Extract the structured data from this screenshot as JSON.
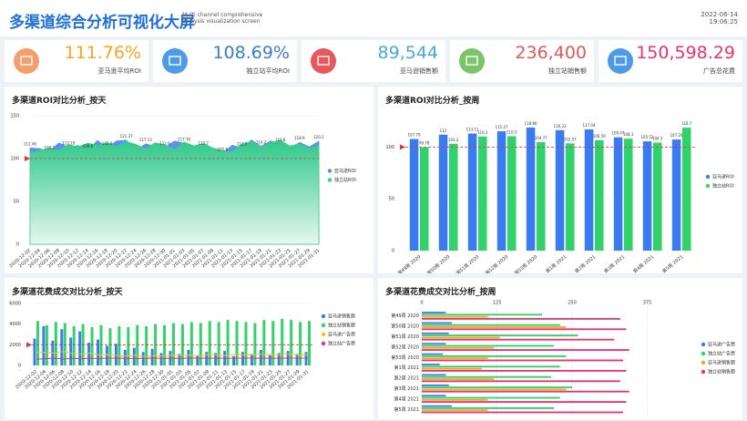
{
  "header": {
    "title": "多渠道综合分析可视化大屏",
    "subtitle": "Multi channel comprehensive analysis visualization screen",
    "date": "2022-06-14",
    "time": "19:06:25"
  },
  "kpis": [
    {
      "value": "111.76%",
      "label": "亚马逊平均ROI"
    },
    {
      "value": "108.69%",
      "label": "独立站平均ROI"
    },
    {
      "value": "89,544",
      "label": "亚马逊销售额"
    },
    {
      "value": "236,400",
      "label": "独立站销售额"
    },
    {
      "value": "150,598.29",
      "label": "广告总花费"
    }
  ],
  "chart_data": [
    {
      "type": "line",
      "area": true,
      "title": "多渠道ROI对比分析_按天",
      "categories": [
        "2020-12-02",
        "2020-12-04",
        "2020-12-06",
        "2020-12-08",
        "2020-12-10",
        "2020-12-12",
        "2020-12-14",
        "2020-12-16",
        "2020-12-18",
        "2020-12-20",
        "2020-12-22",
        "2020-12-24",
        "2020-12-26",
        "2020-12-28",
        "2020-12-30",
        "2021-01-01",
        "2021-01-03",
        "2021-01-05",
        "2021-01-07",
        "2021-01-09",
        "2021-01-11",
        "2021-01-13",
        "2021-01-15",
        "2021-01-17",
        "2021-01-19",
        "2021-01-21",
        "2021-01-23",
        "2021-01-25",
        "2021-01-27",
        "2021-01-29",
        "2021-01-31"
      ],
      "series": [
        {
          "name": "亚马逊ROI",
          "color": "#5b8ff9",
          "values": [
            112.46,
            111.51,
            108.2,
            118.23,
            113.19,
            115.28,
            109.6,
            121.05,
            112.8,
            120.61,
            121.37,
            109.81,
            117.13,
            114.5,
            112.9,
            120.4,
            117.76,
            108.74,
            113.2,
            110.9,
            105.8,
            115.67,
            112.3,
            121.66,
            114.2,
            120.51,
            116.8,
            111.4,
            118.9,
            113.6,
            120.2
          ]
        },
        {
          "name": "独立站ROI",
          "color": "#3ed07a",
          "values": [
            106.5,
            109.45,
            112.1,
            110.3,
            116.2,
            113.7,
            117.9,
            115.4,
            118.6,
            114.2,
            119.8,
            116.5,
            111.3,
            118.4,
            115.9,
            110.6,
            119.2,
            114.8,
            117.5,
            112.4,
            109.1,
            108.3,
            116.9,
            119.7,
            113.5,
            118.2,
            121.4,
            114.6,
            117.3,
            111.9,
            115.5
          ]
        }
      ],
      "ylim": [
        0,
        150
      ],
      "yticks": [
        0,
        50,
        100,
        150
      ],
      "markline": 100,
      "markline_color": "#e0333a"
    },
    {
      "type": "bar",
      "title": "多渠道ROI对比分析_按周",
      "categories": [
        "第49周 2020",
        "第50周 2020",
        "第51周 2020",
        "第52周 2020",
        "第53周 2020",
        "第1周 2021",
        "第2周 2021",
        "第3周 2021",
        "第4周 2021",
        "第5周 2021"
      ],
      "series": [
        {
          "name": "亚马逊ROI",
          "color": "#3b7bf0",
          "values": [
            107.79,
            112,
            113.11,
            115.27,
            118.86,
            116.33,
            117.04,
            109.47,
            105.52,
            107.29
          ]
        },
        {
          "name": "独立站ROI",
          "color": "#2fd36a",
          "values": [
            99.78,
            103.2,
            110.2,
            110.5,
            104.77,
            103.57,
            106.59,
            108.1,
            104.3,
            118.7
          ]
        }
      ],
      "ylim": [
        0,
        125
      ],
      "yticks": [
        0,
        50,
        100
      ],
      "markline": 100,
      "markline_color": "#e0333a"
    },
    {
      "type": "bar",
      "title": "多渠道花费成交对比分析_按天",
      "categories": [
        "2020-12-02",
        "2020-12-04",
        "2020-12-06",
        "2020-12-08",
        "2020-12-10",
        "2020-12-12",
        "2020-12-14",
        "2020-12-16",
        "2020-12-18",
        "2020-12-20",
        "2020-12-22",
        "2020-12-24",
        "2020-12-26",
        "2020-12-28",
        "2020-12-30",
        "2021-01-01",
        "2021-01-03",
        "2021-01-05",
        "2021-01-07",
        "2021-01-09",
        "2021-01-11",
        "2021-01-13",
        "2021-01-15",
        "2021-01-17",
        "2021-01-19",
        "2021-01-21",
        "2021-01-23",
        "2021-01-25",
        "2021-01-27",
        "2021-01-29",
        "2021-01-31"
      ],
      "series": [
        {
          "name": "亚马逊销售额",
          "color": "#3b7bf0",
          "values": [
            2600,
            3800,
            2400,
            3500,
            2700,
            3300,
            2200,
            2500,
            1900,
            2100,
            1500,
            1700,
            1300,
            1600,
            1200,
            1400,
            1100,
            1500,
            1000,
            1300,
            1200,
            1400,
            900,
            1300,
            1100,
            1500,
            1000,
            1200,
            1400,
            1100,
            1300
          ]
        },
        {
          "name": "独立站销售额",
          "color": "#2fd36a",
          "values": [
            4300,
            3900,
            4200,
            4100,
            3800,
            4000,
            3700,
            3900,
            3600,
            3800,
            3700,
            3900,
            3800,
            4000,
            3900,
            4100,
            4000,
            4200,
            4100,
            4300,
            4200,
            4400,
            4300,
            4200,
            4100,
            4400,
            4300,
            4500,
            4400,
            4200,
            4300
          ]
        },
        {
          "name": "亚马逊广告费",
          "color": "#f5c518",
          "type": "line",
          "values": [
            1300,
            1250,
            1200,
            1350,
            1150,
            1100,
            1200,
            1000,
            1050,
            950,
            900,
            1000,
            850,
            950,
            900,
            1000,
            950,
            1000,
            900,
            1050,
            1000,
            950,
            1100,
            1000,
            1050,
            1100,
            1000,
            1050,
            1100,
            1000,
            1050
          ]
        },
        {
          "name": "独立站广告费",
          "color": "#e8336d",
          "type": "line",
          "values": [
            600,
            650,
            700,
            620,
            680,
            640,
            700,
            660,
            720,
            680,
            700,
            650,
            690,
            710,
            670,
            700,
            680,
            720,
            690,
            700,
            710,
            680,
            700,
            720,
            690,
            710,
            700,
            690,
            720,
            700,
            710
          ]
        }
      ],
      "ylim": [
        0,
        6000
      ],
      "yticks": [
        0,
        2000,
        4000,
        6000
      ],
      "markline": 2000,
      "markline_color": "#e0333a"
    },
    {
      "type": "hbar",
      "title": "多渠道花费成交对比分析_按周",
      "categories": [
        "第49周 2020",
        "第50周 2020",
        "第51周 2020",
        "第52周 2020",
        "第53周 2020",
        "第1周 2021",
        "第2周 2021",
        "第3周 2021",
        "第4周 2021",
        "第5周 2021"
      ],
      "series": [
        {
          "name": "亚马逊广告费",
          "color": "#3b7bf0",
          "values": [
            40,
            50,
            45,
            40,
            35,
            30,
            40,
            45,
            40,
            50
          ]
        },
        {
          "name": "独立站广告费",
          "color": "#2fd36a",
          "values": [
            200,
            230,
            260,
            220,
            240,
            230,
            215,
            250,
            230,
            220
          ]
        },
        {
          "name": "亚马逊销售额",
          "color": "#f5a623",
          "values": [
            110,
            240,
            130,
            120,
            110,
            100,
            120,
            240,
            110,
            110
          ]
        },
        {
          "name": "独立站销售额",
          "color": "#e8336d",
          "values": [
            330,
            340,
            320,
            345,
            335,
            340,
            330,
            345,
            340,
            335
          ]
        }
      ],
      "xlim": [
        0,
        450
      ],
      "xticks": [
        0,
        125,
        250,
        375
      ]
    }
  ]
}
